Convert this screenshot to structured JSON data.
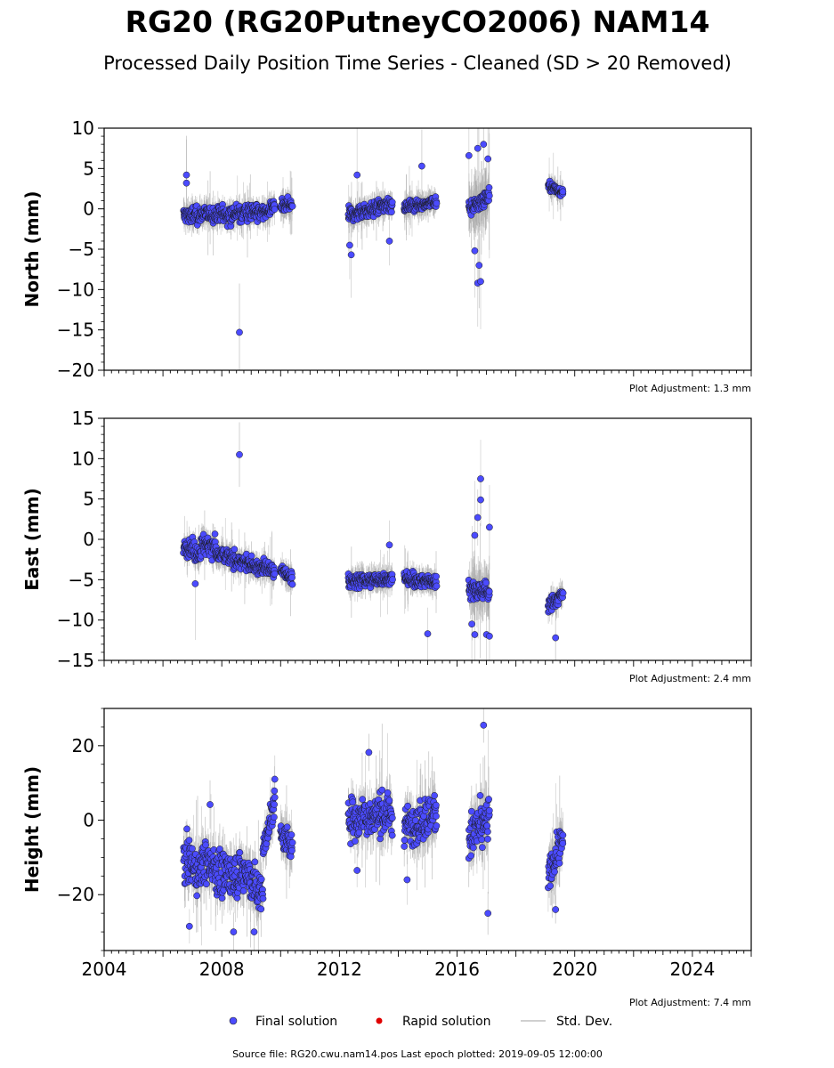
{
  "title": "RG20 (RG20PutneyCO2006) NAM14",
  "subtitle": "Processed Daily Position Time Series - Cleaned (SD > 20 Removed)",
  "legend": {
    "final": "Final solution",
    "rapid": "Rapid solution",
    "std": "Std. Dev."
  },
  "colors": {
    "final": "#4b4bff",
    "rapid": "#e00000",
    "stddev": "#b0b0b0",
    "axis": "#000000"
  },
  "source": "Source file: RG20.cwu.nam14.pos  Last epoch plotted: 2019-09-05 12:00:00",
  "chart_data": [
    {
      "type": "scatter",
      "ylabel": "North (mm)",
      "adjustment": "Plot Adjustment: 1.3 mm",
      "xlim": [
        2004,
        2026
      ],
      "ylim": [
        -20,
        10
      ],
      "yticks": [
        -20,
        -15,
        -10,
        -5,
        0,
        5,
        10
      ],
      "yticklabels": [
        "−20",
        "−15",
        "−10",
        "−5",
        "0",
        "5",
        "10"
      ],
      "xticks": [
        2004,
        2008,
        2012,
        2016,
        2020,
        2024
      ],
      "xticklabels": [
        "2004",
        "2008",
        "2012",
        "2016",
        "2020",
        "2024"
      ],
      "series": [
        {
          "name": "Final solution",
          "segments": [
            {
              "x0": 2006.7,
              "x1": 2009.4,
              "y0": -0.8,
              "y1": -0.4,
              "sd": 1.3,
              "wobble": 1.0
            },
            {
              "x0": 2009.4,
              "x1": 2009.8,
              "y0": -0.5,
              "y1": 0.2,
              "sd": 1.3,
              "wobble": 0.8
            },
            {
              "x0": 2010.0,
              "x1": 2010.4,
              "y0": 0.2,
              "y1": 0.5,
              "sd": 1.3,
              "wobble": 0.8
            },
            {
              "x0": 2012.3,
              "x1": 2013.8,
              "y0": -0.8,
              "y1": 0.6,
              "sd": 1.2,
              "wobble": 0.8
            },
            {
              "x0": 2014.2,
              "x1": 2015.3,
              "y0": 0.3,
              "y1": 0.8,
              "sd": 1.2,
              "wobble": 0.6
            },
            {
              "x0": 2016.4,
              "x1": 2017.1,
              "y0": 0.0,
              "y1": 1.5,
              "sd": 2.8,
              "wobble": 1.0
            },
            {
              "x0": 2019.1,
              "x1": 2019.6,
              "y0": 2.8,
              "y1": 2.0,
              "sd": 1.1,
              "wobble": 0.5
            }
          ],
          "outliers": [
            {
              "x": 2006.8,
              "y": 4.2
            },
            {
              "x": 2006.8,
              "y": 3.2
            },
            {
              "x": 2008.6,
              "y": -15.3
            },
            {
              "x": 2012.35,
              "y": -4.5
            },
            {
              "x": 2012.4,
              "y": -5.7
            },
            {
              "x": 2012.6,
              "y": 4.2
            },
            {
              "x": 2014.8,
              "y": 5.3
            },
            {
              "x": 2016.4,
              "y": 6.6
            },
            {
              "x": 2016.7,
              "y": 7.5
            },
            {
              "x": 2016.9,
              "y": 8.0
            },
            {
              "x": 2017.05,
              "y": 6.2
            },
            {
              "x": 2016.7,
              "y": -9.2
            },
            {
              "x": 2016.8,
              "y": -9.0
            },
            {
              "x": 2016.75,
              "y": -7.0
            },
            {
              "x": 2016.6,
              "y": -5.2
            },
            {
              "x": 2013.7,
              "y": -4.0
            }
          ]
        }
      ]
    },
    {
      "type": "scatter",
      "ylabel": "East (mm)",
      "adjustment": "Plot Adjustment: 2.4 mm",
      "xlim": [
        2004,
        2026
      ],
      "ylim": [
        -15,
        15
      ],
      "yticks": [
        -15,
        -10,
        -5,
        0,
        5,
        10,
        15
      ],
      "yticklabels": [
        "−15",
        "−10",
        "−5",
        "0",
        "5",
        "10",
        "15"
      ],
      "xticks": [
        2004,
        2008,
        2012,
        2016,
        2020,
        2024
      ],
      "xticklabels": [
        "2004",
        "2008",
        "2012",
        "2016",
        "2020",
        "2024"
      ],
      "series": [
        {
          "name": "Final solution",
          "segments": [
            {
              "x0": 2006.7,
              "x1": 2007.3,
              "y0": -0.8,
              "y1": -1.8,
              "sd": 1.2,
              "wobble": 1.0
            },
            {
              "x0": 2007.3,
              "x1": 2007.8,
              "y0": -0.5,
              "y1": -0.8,
              "sd": 1.2,
              "wobble": 1.2
            },
            {
              "x0": 2007.8,
              "x1": 2009.4,
              "y0": -1.8,
              "y1": -3.6,
              "sd": 1.2,
              "wobble": 0.9
            },
            {
              "x0": 2009.4,
              "x1": 2009.8,
              "y0": -3.2,
              "y1": -4.0,
              "sd": 1.2,
              "wobble": 0.8
            },
            {
              "x0": 2010.0,
              "x1": 2010.4,
              "y0": -3.8,
              "y1": -4.8,
              "sd": 1.2,
              "wobble": 0.7
            },
            {
              "x0": 2012.3,
              "x1": 2013.8,
              "y0": -5.2,
              "y1": -4.8,
              "sd": 1.2,
              "wobble": 0.8
            },
            {
              "x0": 2014.2,
              "x1": 2015.3,
              "y0": -5.0,
              "y1": -5.2,
              "sd": 1.2,
              "wobble": 0.8
            },
            {
              "x0": 2016.4,
              "x1": 2017.1,
              "y0": -6.0,
              "y1": -6.5,
              "sd": 2.5,
              "wobble": 1.2
            },
            {
              "x0": 2019.1,
              "x1": 2019.6,
              "y0": -8.2,
              "y1": -6.8,
              "sd": 1.2,
              "wobble": 0.8
            }
          ],
          "outliers": [
            {
              "x": 2008.6,
              "y": 10.5
            },
            {
              "x": 2016.8,
              "y": 7.5
            },
            {
              "x": 2016.8,
              "y": 4.9
            },
            {
              "x": 2016.7,
              "y": 2.7
            },
            {
              "x": 2017.1,
              "y": 1.5
            },
            {
              "x": 2016.6,
              "y": 0.5
            },
            {
              "x": 2016.6,
              "y": -11.8
            },
            {
              "x": 2017.0,
              "y": -11.8
            },
            {
              "x": 2017.1,
              "y": -12.0
            },
            {
              "x": 2015.0,
              "y": -11.7
            },
            {
              "x": 2019.35,
              "y": -12.2
            },
            {
              "x": 2013.7,
              "y": -0.7
            },
            {
              "x": 2007.1,
              "y": -5.5
            },
            {
              "x": 2016.5,
              "y": -10.5
            }
          ]
        }
      ]
    },
    {
      "type": "scatter",
      "ylabel": "Height (mm)",
      "adjustment": "Plot Adjustment: 7.4 mm",
      "xlim": [
        2004,
        2026
      ],
      "ylim": [
        -35,
        30
      ],
      "yticks": [
        -20,
        0,
        20
      ],
      "yticklabels": [
        "−20",
        "0",
        "20"
      ],
      "xticks": [
        2004,
        2008,
        2012,
        2016,
        2020,
        2024
      ],
      "xticklabels": [
        "2004",
        "2008",
        "2012",
        "2016",
        "2020",
        "2024"
      ],
      "series": [
        {
          "name": "Final solution",
          "segments": [
            {
              "x0": 2006.7,
              "x1": 2007.3,
              "y0": -10,
              "y1": -15,
              "sd": 5.0,
              "wobble": 5.5
            },
            {
              "x0": 2007.3,
              "x1": 2007.8,
              "y0": -11,
              "y1": -13,
              "sd": 5.0,
              "wobble": 5.0
            },
            {
              "x0": 2007.8,
              "x1": 2008.6,
              "y0": -15,
              "y1": -14,
              "sd": 5.0,
              "wobble": 5.5
            },
            {
              "x0": 2008.6,
              "x1": 2009.4,
              "y0": -13,
              "y1": -20,
              "sd": 5.0,
              "wobble": 5.5
            },
            {
              "x0": 2009.4,
              "x1": 2009.8,
              "y0": -8,
              "y1": 5,
              "sd": 4.5,
              "wobble": 3.0
            },
            {
              "x0": 2010.0,
              "x1": 2010.4,
              "y0": -3,
              "y1": -8,
              "sd": 4.5,
              "wobble": 4.0
            },
            {
              "x0": 2012.3,
              "x1": 2013.8,
              "y0": 0,
              "y1": 2,
              "sd": 5.0,
              "wobble": 5.0
            },
            {
              "x0": 2014.2,
              "x1": 2015.3,
              "y0": -2,
              "y1": 2,
              "sd": 5.0,
              "wobble": 5.0
            },
            {
              "x0": 2016.4,
              "x1": 2017.1,
              "y0": -5,
              "y1": 0,
              "sd": 6.0,
              "wobble": 6.0
            },
            {
              "x0": 2019.1,
              "x1": 2019.6,
              "y0": -15,
              "y1": -5,
              "sd": 5.0,
              "wobble": 4.0
            }
          ],
          "outliers": [
            {
              "x": 2016.9,
              "y": 25.5
            },
            {
              "x": 2013.0,
              "y": 18.2
            },
            {
              "x": 2006.9,
              "y": -28.5
            },
            {
              "x": 2008.4,
              "y": -30.0
            },
            {
              "x": 2009.1,
              "y": -30.0
            },
            {
              "x": 2017.05,
              "y": -25.0
            },
            {
              "x": 2019.35,
              "y": -24.0
            },
            {
              "x": 2012.6,
              "y": -13.5
            },
            {
              "x": 2014.3,
              "y": -16.0
            },
            {
              "x": 2007.6,
              "y": 4.2
            },
            {
              "x": 2009.8,
              "y": 11.0
            }
          ]
        }
      ]
    }
  ]
}
